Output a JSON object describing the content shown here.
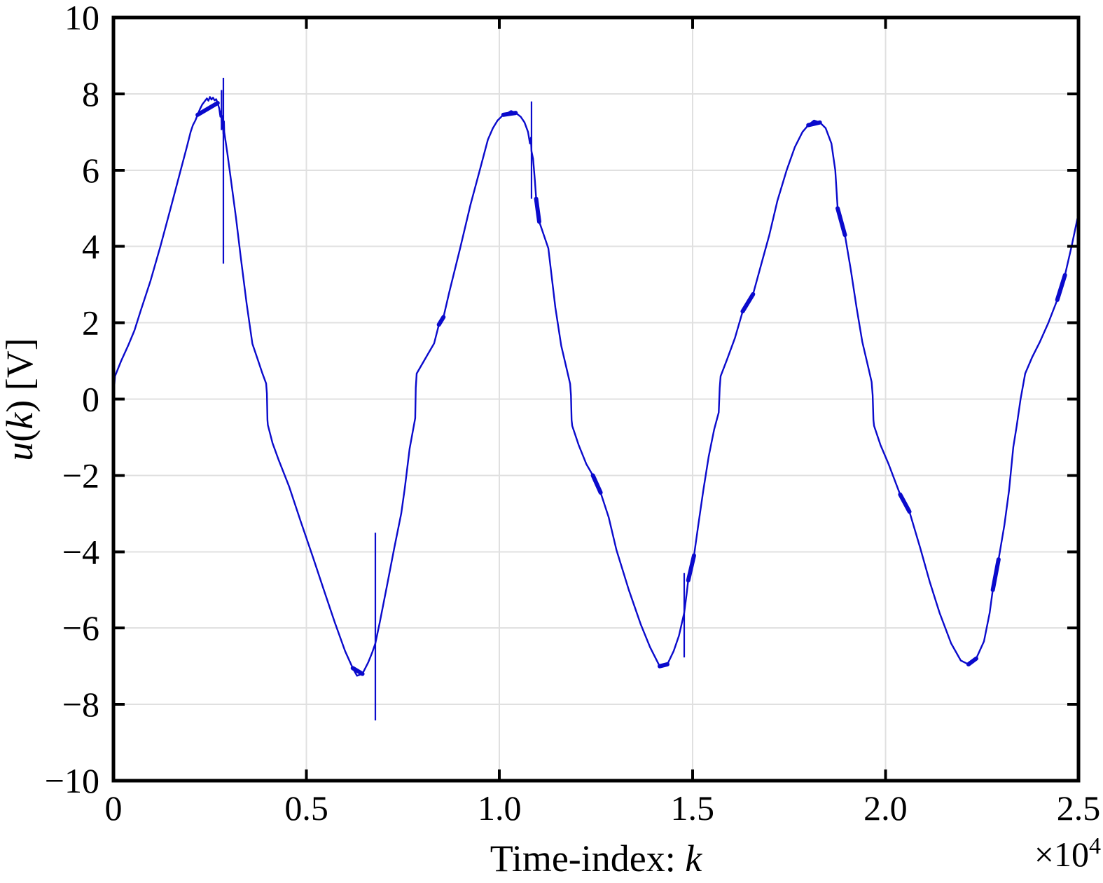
{
  "chart_data": {
    "type": "line",
    "title": "",
    "xlabel": "Time-index: k",
    "ylabel": "u(k) [V]",
    "xlabel_parts": {
      "text": "Time-index: ",
      "math": "k"
    },
    "ylabel_parts": {
      "u": "u",
      "open": "(",
      "k": "k",
      "close": ") [V]"
    },
    "offset_parts": {
      "base": "×10",
      "exp": "4"
    },
    "xlim": [
      0,
      25000
    ],
    "ylim": [
      -10,
      10
    ],
    "grid": true,
    "legend": "none",
    "xticks": {
      "values": [
        0,
        5000,
        10000,
        15000,
        20000,
        25000
      ],
      "labels": [
        "0",
        "0.5",
        "1.0",
        "1.5",
        "2.0",
        "2.5"
      ]
    },
    "yticks": {
      "values": [
        10,
        8,
        6,
        4,
        2,
        0,
        -2,
        -4,
        -6,
        -8,
        -10
      ],
      "labels": [
        "10",
        "8",
        "6",
        "4",
        "2",
        "0",
        "−2",
        "−4",
        "−6",
        "−8",
        "−10"
      ]
    },
    "colors": {
      "line": "#0a0acc",
      "grid": "#e0e0e0",
      "axis": "#000000",
      "background": "#ffffff"
    },
    "series": [
      {
        "name": "u(k)",
        "color": "#0a0acc",
        "points": [
          [
            0,
            0.05
          ],
          [
            40,
            0.6
          ],
          [
            200,
            1.0
          ],
          [
            380,
            1.4
          ],
          [
            545,
            1.8
          ],
          [
            700,
            2.3
          ],
          [
            960,
            3.1
          ],
          [
            1215,
            4.0
          ],
          [
            1480,
            5.0
          ],
          [
            1742,
            6.0
          ],
          [
            1900,
            6.6
          ],
          [
            2000,
            7.0
          ],
          [
            2060,
            7.18
          ],
          [
            2120,
            7.3
          ],
          [
            2180,
            7.45
          ],
          [
            2240,
            7.6
          ],
          [
            2300,
            7.72
          ],
          [
            2360,
            7.8
          ],
          [
            2420,
            7.88
          ],
          [
            2460,
            7.82
          ],
          [
            2500,
            7.92
          ],
          [
            2540,
            7.85
          ],
          [
            2580,
            7.9
          ],
          [
            2620,
            7.83
          ],
          [
            2660,
            7.86
          ],
          [
            2700,
            7.76
          ],
          [
            2740,
            7.62
          ],
          [
            2770,
            7.4
          ],
          [
            2790,
            7.55
          ],
          [
            2812,
            7.1
          ],
          [
            2832,
            7.42
          ],
          [
            2848,
            6.95
          ],
          [
            2862,
            7.28
          ],
          [
            2870,
            7.0
          ],
          [
            2950,
            6.45
          ],
          [
            3050,
            5.7
          ],
          [
            3175,
            4.75
          ],
          [
            3300,
            3.7
          ],
          [
            3450,
            2.5
          ],
          [
            3600,
            1.45
          ],
          [
            3737,
            1.04
          ],
          [
            3850,
            0.7
          ],
          [
            3955,
            0.41
          ],
          [
            3975,
            0.15
          ],
          [
            3990,
            -0.55
          ],
          [
            4000,
            -0.68
          ],
          [
            4120,
            -1.15
          ],
          [
            4281,
            -1.6
          ],
          [
            4553,
            -2.3
          ],
          [
            4850,
            -3.2
          ],
          [
            5170,
            -4.15
          ],
          [
            5450,
            -5.0
          ],
          [
            5733,
            -5.85
          ],
          [
            6000,
            -6.6
          ],
          [
            6200,
            -7.05
          ],
          [
            6310,
            -7.25
          ],
          [
            6450,
            -7.2
          ],
          [
            6600,
            -6.9
          ],
          [
            6700,
            -6.65
          ],
          [
            6785,
            -6.4
          ],
          [
            6900,
            -5.85
          ],
          [
            7093,
            -4.85
          ],
          [
            7275,
            -3.9
          ],
          [
            7455,
            -3.0
          ],
          [
            7546,
            -2.35
          ],
          [
            7673,
            -1.3
          ],
          [
            7818,
            -0.5
          ],
          [
            7832,
            0.3
          ],
          [
            7855,
            0.67
          ],
          [
            8100,
            1.1
          ],
          [
            8308,
            1.46
          ],
          [
            8430,
            1.95
          ],
          [
            8550,
            2.15
          ],
          [
            8700,
            2.8
          ],
          [
            8980,
            3.95
          ],
          [
            9250,
            5.1
          ],
          [
            9490,
            6.0
          ],
          [
            9700,
            6.8
          ],
          [
            9830,
            7.1
          ],
          [
            9950,
            7.3
          ],
          [
            10100,
            7.45
          ],
          [
            10220,
            7.5
          ],
          [
            10300,
            7.55
          ],
          [
            10420,
            7.5
          ],
          [
            10550,
            7.4
          ],
          [
            10650,
            7.25
          ],
          [
            10740,
            7.0
          ],
          [
            10790,
            6.7
          ],
          [
            10815,
            6.85
          ],
          [
            10830,
            6.5
          ],
          [
            10870,
            6.3
          ],
          [
            10920,
            5.7
          ],
          [
            10950,
            5.25
          ],
          [
            11030,
            4.65
          ],
          [
            11266,
            3.95
          ],
          [
            11448,
            2.4
          ],
          [
            11600,
            1.4
          ],
          [
            11750,
            0.75
          ],
          [
            11830,
            0.4
          ],
          [
            11852,
            0.1
          ],
          [
            11868,
            -0.55
          ],
          [
            11885,
            -0.7
          ],
          [
            12050,
            -1.2
          ],
          [
            12250,
            -1.7
          ],
          [
            12420,
            -2.0
          ],
          [
            12620,
            -2.45
          ],
          [
            12830,
            -3.1
          ],
          [
            13030,
            -3.95
          ],
          [
            13350,
            -5.0
          ],
          [
            13660,
            -5.9
          ],
          [
            13900,
            -6.5
          ],
          [
            14150,
            -7.0
          ],
          [
            14350,
            -6.95
          ],
          [
            14513,
            -6.6
          ],
          [
            14650,
            -6.2
          ],
          [
            14786,
            -5.6
          ],
          [
            14850,
            -5.1
          ],
          [
            14890,
            -4.75
          ],
          [
            15040,
            -4.1
          ],
          [
            15150,
            -3.3
          ],
          [
            15280,
            -2.4
          ],
          [
            15420,
            -1.5
          ],
          [
            15560,
            -0.8
          ],
          [
            15680,
            -0.35
          ],
          [
            15705,
            0.3
          ],
          [
            15730,
            0.6
          ],
          [
            15900,
            1.05
          ],
          [
            16100,
            1.6
          ],
          [
            16300,
            2.3
          ],
          [
            16570,
            2.75
          ],
          [
            16800,
            3.6
          ],
          [
            16990,
            4.3
          ],
          [
            17200,
            5.2
          ],
          [
            17440,
            6.0
          ],
          [
            17650,
            6.6
          ],
          [
            17850,
            7.0
          ],
          [
            18000,
            7.18
          ],
          [
            18150,
            7.3
          ],
          [
            18300,
            7.25
          ],
          [
            18450,
            7.1
          ],
          [
            18600,
            6.7
          ],
          [
            18700,
            6.0
          ],
          [
            18760,
            5.0
          ],
          [
            18950,
            4.3
          ],
          [
            19100,
            3.4
          ],
          [
            19250,
            2.4
          ],
          [
            19400,
            1.5
          ],
          [
            19550,
            0.85
          ],
          [
            19640,
            0.45
          ],
          [
            19668,
            0.1
          ],
          [
            19688,
            -0.55
          ],
          [
            19705,
            -0.7
          ],
          [
            19870,
            -1.2
          ],
          [
            20080,
            -1.7
          ],
          [
            20380,
            -2.5
          ],
          [
            20620,
            -2.95
          ],
          [
            20900,
            -3.9
          ],
          [
            21150,
            -4.8
          ],
          [
            21400,
            -5.6
          ],
          [
            21700,
            -6.4
          ],
          [
            21950,
            -6.85
          ],
          [
            22150,
            -6.95
          ],
          [
            22350,
            -6.8
          ],
          [
            22550,
            -6.35
          ],
          [
            22700,
            -5.6
          ],
          [
            22780,
            -5.0
          ],
          [
            22930,
            -4.2
          ],
          [
            23080,
            -3.3
          ],
          [
            23200,
            -2.4
          ],
          [
            23311,
            -1.26
          ],
          [
            23400,
            -0.7
          ],
          [
            23500,
            0.0
          ],
          [
            23620,
            0.67
          ],
          [
            23800,
            1.1
          ],
          [
            24000,
            1.5
          ],
          [
            24220,
            2.0
          ],
          [
            24450,
            2.6
          ],
          [
            24650,
            3.25
          ],
          [
            24820,
            4.0
          ],
          [
            25000,
            4.86
          ]
        ]
      }
    ],
    "spikes": [
      [
        2800,
        7.05,
        8.1
      ],
      [
        2848,
        3.55,
        8.42
      ],
      [
        6785,
        -8.42,
        -3.5
      ],
      [
        10830,
        5.25,
        7.8
      ],
      [
        14786,
        -6.77,
        -4.56
      ]
    ],
    "noise_segments": [
      [
        8430,
        1.95,
        8550,
        2.15
      ],
      [
        10950,
        5.25,
        11030,
        4.65
      ],
      [
        12420,
        -2.0,
        12620,
        -2.45
      ],
      [
        14890,
        -4.75,
        15040,
        -4.1
      ],
      [
        16300,
        2.3,
        16570,
        2.75
      ],
      [
        18760,
        5.0,
        18950,
        4.3
      ],
      [
        20380,
        -2.5,
        20620,
        -2.95
      ],
      [
        22780,
        -5.0,
        22930,
        -4.2
      ],
      [
        24450,
        2.6,
        24650,
        3.25
      ],
      [
        2180,
        7.45,
        2700,
        7.76
      ],
      [
        10100,
        7.45,
        10420,
        7.5
      ],
      [
        18000,
        7.18,
        18300,
        7.25
      ],
      [
        6200,
        -7.05,
        6450,
        -7.2
      ],
      [
        14150,
        -7.0,
        14350,
        -6.95
      ],
      [
        22150,
        -6.95,
        22350,
        -6.8
      ]
    ]
  }
}
